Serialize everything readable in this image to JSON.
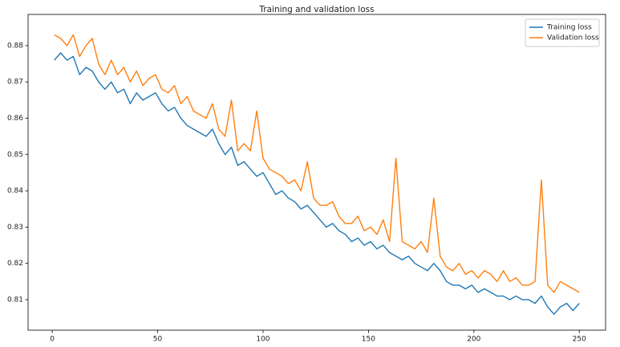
{
  "chart_data": {
    "type": "line",
    "title": "Training and validation loss",
    "x": [
      1,
      4,
      7,
      10,
      13,
      16,
      19,
      22,
      25,
      28,
      31,
      34,
      37,
      40,
      43,
      46,
      49,
      52,
      55,
      58,
      61,
      64,
      67,
      70,
      73,
      76,
      79,
      82,
      85,
      88,
      91,
      94,
      97,
      100,
      103,
      106,
      109,
      112,
      115,
      118,
      121,
      124,
      127,
      130,
      133,
      136,
      139,
      142,
      145,
      148,
      151,
      154,
      157,
      160,
      163,
      166,
      169,
      172,
      175,
      178,
      181,
      184,
      187,
      190,
      193,
      196,
      199,
      202,
      205,
      208,
      211,
      214,
      217,
      220,
      223,
      226,
      229,
      232,
      235,
      238,
      241,
      244,
      247,
      250
    ],
    "series": [
      {
        "name": "Training loss",
        "color": "#1f77b4",
        "values": [
          0.876,
          0.878,
          0.876,
          0.877,
          0.872,
          0.874,
          0.873,
          0.87,
          0.868,
          0.87,
          0.867,
          0.868,
          0.864,
          0.867,
          0.865,
          0.866,
          0.867,
          0.864,
          0.862,
          0.863,
          0.86,
          0.858,
          0.857,
          0.856,
          0.855,
          0.857,
          0.853,
          0.85,
          0.852,
          0.847,
          0.848,
          0.846,
          0.844,
          0.845,
          0.842,
          0.839,
          0.84,
          0.838,
          0.837,
          0.835,
          0.836,
          0.834,
          0.832,
          0.83,
          0.831,
          0.829,
          0.828,
          0.826,
          0.827,
          0.825,
          0.826,
          0.824,
          0.825,
          0.823,
          0.822,
          0.821,
          0.822,
          0.82,
          0.819,
          0.818,
          0.82,
          0.818,
          0.815,
          0.814,
          0.814,
          0.813,
          0.814,
          0.812,
          0.813,
          0.812,
          0.811,
          0.811,
          0.81,
          0.811,
          0.81,
          0.81,
          0.809,
          0.811,
          0.808,
          0.806,
          0.808,
          0.809,
          0.807,
          0.809
        ]
      },
      {
        "name": "Validation loss",
        "color": "#ff7f0e",
        "values": [
          0.883,
          0.882,
          0.88,
          0.883,
          0.877,
          0.88,
          0.882,
          0.875,
          0.872,
          0.876,
          0.872,
          0.874,
          0.87,
          0.873,
          0.869,
          0.871,
          0.872,
          0.868,
          0.867,
          0.869,
          0.864,
          0.866,
          0.862,
          0.861,
          0.86,
          0.864,
          0.857,
          0.855,
          0.865,
          0.851,
          0.853,
          0.851,
          0.862,
          0.849,
          0.846,
          0.845,
          0.844,
          0.842,
          0.843,
          0.84,
          0.848,
          0.838,
          0.836,
          0.836,
          0.837,
          0.833,
          0.831,
          0.831,
          0.833,
          0.829,
          0.83,
          0.828,
          0.832,
          0.826,
          0.849,
          0.826,
          0.825,
          0.824,
          0.826,
          0.823,
          0.838,
          0.822,
          0.819,
          0.818,
          0.82,
          0.817,
          0.818,
          0.816,
          0.818,
          0.817,
          0.815,
          0.818,
          0.815,
          0.816,
          0.814,
          0.814,
          0.815,
          0.843,
          0.814,
          0.812,
          0.815,
          0.814,
          0.813,
          0.812
        ]
      }
    ],
    "xlim": [
      -11.45,
      262.45
    ],
    "xticks": [
      0,
      50,
      100,
      150,
      200,
      250
    ],
    "ylim": [
      0.8016,
      0.8886
    ],
    "yticks": [
      0.81,
      0.82,
      0.83,
      0.84,
      0.85,
      0.86,
      0.87,
      0.88
    ],
    "legend": "upper right",
    "grid": false
  }
}
